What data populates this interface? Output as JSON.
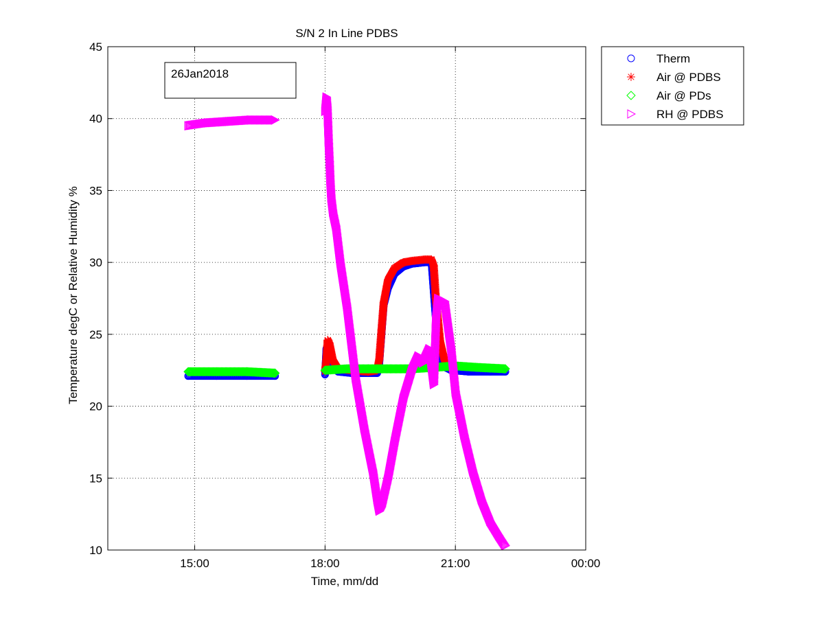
{
  "chart_data": {
    "type": "scatter",
    "title": "S/N 2 In Line PDBS",
    "xlabel": "Time, mm/dd",
    "ylabel": "Temperature degC or Relative Humidity %",
    "annotation": "26Jan2018",
    "x_unit": "hours",
    "xlim": [
      13.0,
      24.0
    ],
    "ylim": [
      10,
      45
    ],
    "x_ticks": [
      {
        "value": 15,
        "label": "15:00"
      },
      {
        "value": 18,
        "label": "18:00"
      },
      {
        "value": 21,
        "label": "21:00"
      },
      {
        "value": 24,
        "label": "00:00"
      }
    ],
    "y_ticks": [
      10,
      15,
      20,
      25,
      30,
      35,
      40,
      45
    ],
    "grid": true,
    "legend_position": "outside-top-right",
    "series": [
      {
        "name": "Therm",
        "marker": "circle",
        "color": "#0000ff",
        "segments": [
          [
            [
              14.85,
              22.1
            ],
            [
              15.5,
              22.1
            ],
            [
              16.2,
              22.1
            ],
            [
              16.85,
              22.1
            ]
          ],
          [
            [
              18.0,
              22.2
            ],
            [
              18.03,
              24.0
            ],
            [
              18.08,
              23.8
            ],
            [
              18.15,
              22.8
            ],
            [
              18.3,
              22.4
            ],
            [
              18.6,
              22.3
            ],
            [
              19.0,
              22.3
            ],
            [
              19.2,
              22.3
            ],
            [
              19.25,
              23.0
            ],
            [
              19.3,
              25.0
            ],
            [
              19.35,
              27.0
            ],
            [
              19.45,
              28.2
            ],
            [
              19.6,
              29.2
            ],
            [
              19.8,
              29.7
            ],
            [
              20.0,
              29.9
            ],
            [
              20.3,
              30.0
            ],
            [
              20.45,
              30.0
            ],
            [
              20.5,
              28.0
            ],
            [
              20.6,
              24.0
            ],
            [
              20.7,
              22.8
            ],
            [
              20.9,
              22.5
            ],
            [
              21.3,
              22.4
            ],
            [
              21.8,
              22.4
            ],
            [
              22.15,
              22.4
            ]
          ]
        ]
      },
      {
        "name": "Air @ PDBS",
        "marker": "star",
        "color": "#ff0000",
        "segments": [
          [
            [
              18.0,
              22.4
            ],
            [
              18.03,
              23.2
            ],
            [
              18.06,
              24.6
            ],
            [
              18.1,
              24.4
            ],
            [
              18.18,
              23.2
            ],
            [
              18.3,
              22.6
            ],
            [
              18.6,
              22.5
            ],
            [
              19.0,
              22.4
            ],
            [
              19.2,
              22.5
            ],
            [
              19.25,
              23.3
            ],
            [
              19.3,
              25.3
            ],
            [
              19.35,
              27.2
            ],
            [
              19.45,
              28.8
            ],
            [
              19.6,
              29.6
            ],
            [
              19.8,
              30.0
            ],
            [
              20.0,
              30.1
            ],
            [
              20.3,
              30.2
            ],
            [
              20.45,
              30.2
            ],
            [
              20.5,
              29.8
            ],
            [
              20.55,
              27.5
            ],
            [
              20.65,
              24.5
            ],
            [
              20.75,
              23.2
            ],
            [
              20.85,
              22.7
            ]
          ]
        ]
      },
      {
        "name": "Air @ PDs",
        "marker": "diamond",
        "color": "#00ff00",
        "segments": [
          [
            [
              14.85,
              22.4
            ],
            [
              15.5,
              22.4
            ],
            [
              16.2,
              22.4
            ],
            [
              16.85,
              22.3
            ]
          ],
          [
            [
              18.0,
              22.5
            ],
            [
              18.5,
              22.6
            ],
            [
              19.0,
              22.6
            ],
            [
              19.5,
              22.6
            ],
            [
              20.0,
              22.6
            ],
            [
              20.5,
              22.7
            ],
            [
              21.0,
              22.8
            ],
            [
              21.5,
              22.7
            ],
            [
              22.15,
              22.6
            ]
          ]
        ]
      },
      {
        "name": "RH @ PDBS",
        "marker": "triangle-right",
        "color": "#ff00ff",
        "segments": [
          [
            [
              14.85,
              39.5
            ],
            [
              15.3,
              39.7
            ],
            [
              15.8,
              39.8
            ],
            [
              16.3,
              39.9
            ],
            [
              16.85,
              39.9
            ]
          ],
          [
            [
              18.0,
              40.5
            ],
            [
              18.03,
              41.5
            ],
            [
              18.05,
              40.8
            ],
            [
              18.08,
              38.3
            ],
            [
              18.1,
              37.0
            ],
            [
              18.12,
              35.5
            ],
            [
              18.14,
              34.5
            ],
            [
              18.18,
              33.5
            ],
            [
              18.25,
              32.5
            ],
            [
              18.35,
              30.0
            ],
            [
              18.5,
              27.0
            ],
            [
              18.7,
              22.0
            ],
            [
              18.9,
              18.5
            ],
            [
              19.1,
              15.5
            ],
            [
              19.2,
              13.5
            ],
            [
              19.25,
              12.7
            ],
            [
              19.3,
              13.0
            ],
            [
              19.45,
              15.0
            ],
            [
              19.6,
              17.5
            ],
            [
              19.8,
              20.5
            ],
            [
              20.0,
              22.5
            ],
            [
              20.15,
              23.5
            ],
            [
              20.25,
              23.0
            ],
            [
              20.4,
              24.0
            ],
            [
              20.5,
              21.5
            ],
            [
              20.55,
              26.0
            ],
            [
              20.6,
              27.5
            ],
            [
              20.75,
              27.3
            ],
            [
              20.9,
              24.0
            ],
            [
              21.0,
              21.0
            ],
            [
              21.2,
              18.0
            ],
            [
              21.4,
              15.5
            ],
            [
              21.6,
              13.5
            ],
            [
              21.8,
              12.0
            ],
            [
              22.0,
              11.0
            ],
            [
              22.15,
              10.3
            ]
          ]
        ]
      }
    ]
  }
}
